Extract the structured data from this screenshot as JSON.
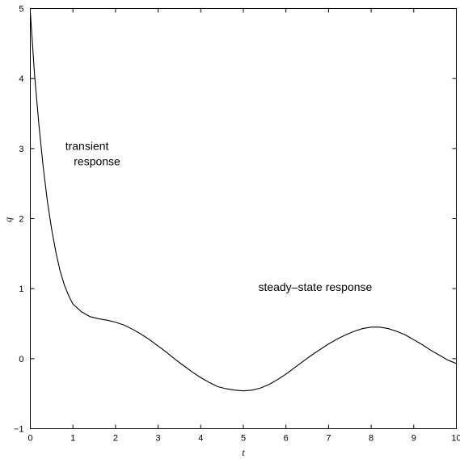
{
  "chart_data": {
    "type": "line",
    "xlabel": "t",
    "ylabel": "q",
    "xlim": [
      0,
      10
    ],
    "ylim": [
      -1,
      5
    ],
    "xticks": [
      "0",
      "1",
      "2",
      "3",
      "4",
      "5",
      "6",
      "7",
      "8",
      "9",
      "10"
    ],
    "yticks": [
      "-1",
      "0",
      "1",
      "2",
      "3",
      "4",
      "5"
    ],
    "grid": false,
    "annotations": [
      {
        "text": "transient",
        "x": 0.82,
        "y": 2.98
      },
      {
        "text": "response",
        "x": 1.02,
        "y": 2.76
      },
      {
        "text": "steady–state response",
        "x": 5.35,
        "y": 0.97
      }
    ],
    "series": [
      {
        "color": "#000000",
        "x": [
          0,
          0.1,
          0.2,
          0.3,
          0.4,
          0.5,
          0.6,
          0.7,
          0.8,
          0.9,
          1.0,
          1.2,
          1.4,
          1.6,
          1.8,
          2.0,
          2.2,
          2.4,
          2.6,
          2.8,
          3.0,
          3.2,
          3.4,
          3.6,
          3.8,
          4.0,
          4.2,
          4.4,
          4.6,
          4.8,
          5.0,
          5.2,
          5.4,
          5.6,
          5.8,
          6.0,
          6.2,
          6.4,
          6.6,
          6.8,
          7.0,
          7.2,
          7.4,
          7.6,
          7.8,
          8.0,
          8.2,
          8.4,
          8.6,
          8.8,
          9.0,
          9.2,
          9.4,
          9.6,
          9.8,
          10.0
        ],
        "y": [
          4.95,
          4.05,
          3.35,
          2.75,
          2.25,
          1.85,
          1.52,
          1.25,
          1.05,
          0.9,
          0.78,
          0.67,
          0.6,
          0.57,
          0.55,
          0.52,
          0.48,
          0.42,
          0.35,
          0.27,
          0.18,
          0.09,
          -0.01,
          -0.1,
          -0.19,
          -0.27,
          -0.34,
          -0.4,
          -0.43,
          -0.45,
          -0.46,
          -0.45,
          -0.42,
          -0.37,
          -0.3,
          -0.22,
          -0.13,
          -0.04,
          0.05,
          0.13,
          0.21,
          0.28,
          0.34,
          0.39,
          0.43,
          0.45,
          0.45,
          0.43,
          0.39,
          0.34,
          0.27,
          0.2,
          0.12,
          0.05,
          -0.02,
          -0.07
        ]
      }
    ]
  }
}
